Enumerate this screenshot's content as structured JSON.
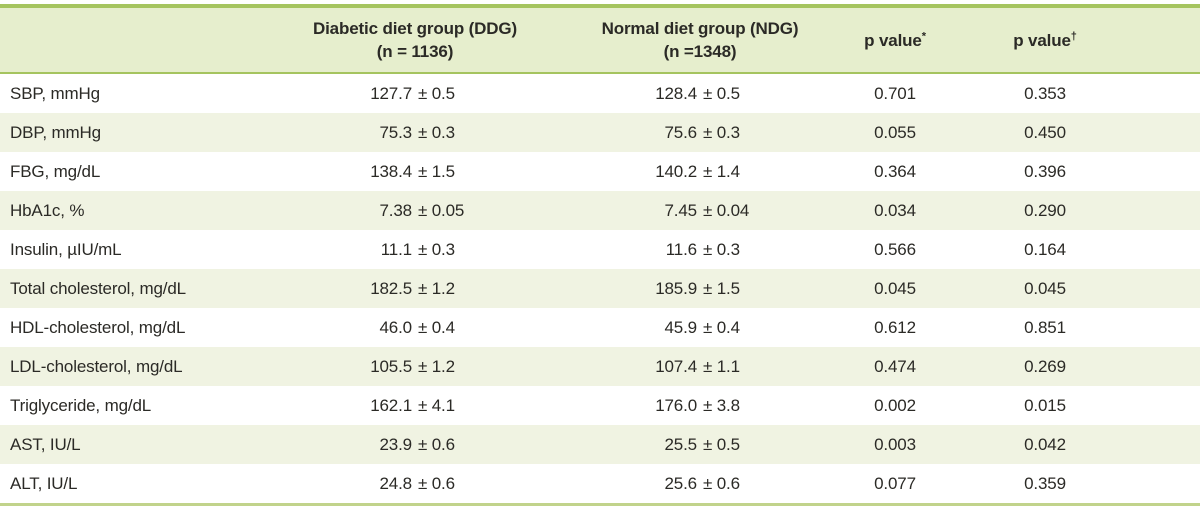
{
  "colors": {
    "green_line": "#a5c45f",
    "green_line_light": "#c1d38b",
    "header_background": "#e6eecd",
    "stripe_background": "#f0f3e2",
    "text": "#2b2a26"
  },
  "table": {
    "plus_minus": "±",
    "columns": {
      "parameter": "",
      "ddg": {
        "line1": "Diabetic diet group (DDG)",
        "line2": "(n = 1136)"
      },
      "ndg": {
        "line1": "Normal diet group (NDG)",
        "line2": "(n =1348)"
      },
      "p1": {
        "label": "p value",
        "sup": "*"
      },
      "p2": {
        "label": "p value",
        "sup": "†"
      }
    },
    "rows": [
      {
        "label": "SBP, mmHg",
        "ddg_mean": "127.7",
        "ddg_sd": "0.5",
        "ndg_mean": "128.4",
        "ndg_sd": "0.5",
        "p1": "0.701",
        "p2": "0.353"
      },
      {
        "label": "DBP, mmHg",
        "ddg_mean": "75.3",
        "ddg_sd": "0.3",
        "ndg_mean": "75.6",
        "ndg_sd": "0.3",
        "p1": "0.055",
        "p2": "0.450"
      },
      {
        "label": "FBG, mg/dL",
        "ddg_mean": "138.4",
        "ddg_sd": "1.5",
        "ndg_mean": "140.2",
        "ndg_sd": "1.4",
        "p1": "0.364",
        "p2": "0.396"
      },
      {
        "label": "HbA1c, %",
        "ddg_mean": "7.38",
        "ddg_sd": "0.05",
        "ndg_mean": "7.45",
        "ndg_sd": "0.04",
        "p1": "0.034",
        "p2": "0.290"
      },
      {
        "label": "Insulin, µIU/mL",
        "ddg_mean": "11.1",
        "ddg_sd": "0.3",
        "ndg_mean": "11.6",
        "ndg_sd": "0.3",
        "p1": "0.566",
        "p2": "0.164"
      },
      {
        "label": "Total cholesterol, mg/dL",
        "ddg_mean": "182.5",
        "ddg_sd": "1.2",
        "ndg_mean": "185.9",
        "ndg_sd": "1.5",
        "p1": "0.045",
        "p2": "0.045"
      },
      {
        "label": "HDL-cholesterol, mg/dL",
        "ddg_mean": "46.0",
        "ddg_sd": "0.4",
        "ndg_mean": "45.9",
        "ndg_sd": "0.4",
        "p1": "0.612",
        "p2": "0.851"
      },
      {
        "label": "LDL-cholesterol, mg/dL",
        "ddg_mean": "105.5",
        "ddg_sd": "1.2",
        "ndg_mean": "107.4",
        "ndg_sd": "1.1",
        "p1": "0.474",
        "p2": "0.269"
      },
      {
        "label": "Triglyceride, mg/dL",
        "ddg_mean": "162.1",
        "ddg_sd": "4.1",
        "ndg_mean": "176.0",
        "ndg_sd": "3.8",
        "p1": "0.002",
        "p2": "0.015"
      },
      {
        "label": "AST, IU/L",
        "ddg_mean": "23.9",
        "ddg_sd": "0.6",
        "ndg_mean": "25.5",
        "ndg_sd": "0.5",
        "p1": "0.003",
        "p2": "0.042"
      },
      {
        "label": "ALT, IU/L",
        "ddg_mean": "24.8",
        "ddg_sd": "0.6",
        "ndg_mean": "25.6",
        "ndg_sd": "0.6",
        "p1": "0.077",
        "p2": "0.359"
      }
    ]
  }
}
